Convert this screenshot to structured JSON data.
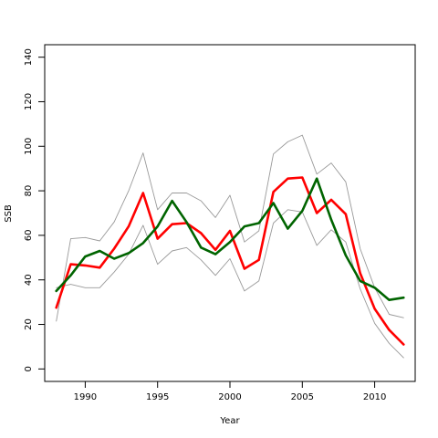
{
  "chart_data": {
    "type": "line",
    "xlabel": "Year",
    "ylabel": "SSB",
    "xlim": [
      1987.2,
      2012.8
    ],
    "ylim": [
      -5.6,
      145.6
    ],
    "x_ticks": [
      1990,
      1995,
      2000,
      2005,
      2010
    ],
    "y_ticks": [
      0,
      20,
      40,
      60,
      80,
      100,
      120,
      140
    ],
    "grid": false,
    "x": [
      1988,
      1989,
      1990,
      1991,
      1992,
      1993,
      1994,
      1995,
      1996,
      1997,
      1998,
      1999,
      2000,
      2001,
      2002,
      2003,
      2004,
      2005,
      2006,
      2007,
      2008,
      2009,
      2010,
      2011,
      2012
    ],
    "series": [
      {
        "color": "#FF0000",
        "width": 2.6,
        "values": [
          27.5,
          47,
          46.5,
          45.5,
          54,
          64,
          79,
          58.5,
          65,
          65.5,
          61,
          53.5,
          62,
          45,
          49,
          79.5,
          85.5,
          86,
          70,
          76,
          69.5,
          43,
          27,
          17.5,
          11
        ]
      },
      {
        "color": "#006400",
        "width": 2.6,
        "values": [
          35,
          42,
          50.5,
          53,
          49.5,
          52,
          56.5,
          64,
          75.5,
          66,
          54.5,
          51.5,
          57,
          64,
          65.5,
          74.5,
          63,
          71,
          85.5,
          67,
          51,
          39.5,
          36.5,
          31,
          32
        ]
      },
      {
        "color": "#999999",
        "width": 0.9,
        "values": [
          21.5,
          58.5,
          59,
          57.5,
          66,
          80,
          97,
          71.5,
          79,
          79,
          75.5,
          68,
          78,
          57,
          62,
          96.5,
          102,
          105,
          87.5,
          92.5,
          84,
          54,
          36.5,
          24.5,
          23
        ]
      },
      {
        "color": "#999999",
        "width": 0.9,
        "values": [
          36.5,
          38,
          36.5,
          36.5,
          43.5,
          51.5,
          64.5,
          47,
          53,
          54.5,
          49,
          42,
          49.5,
          35,
          39.5,
          65.5,
          71.5,
          70.5,
          55.5,
          62.5,
          57,
          36,
          20.5,
          11.5,
          5
        ]
      }
    ]
  }
}
